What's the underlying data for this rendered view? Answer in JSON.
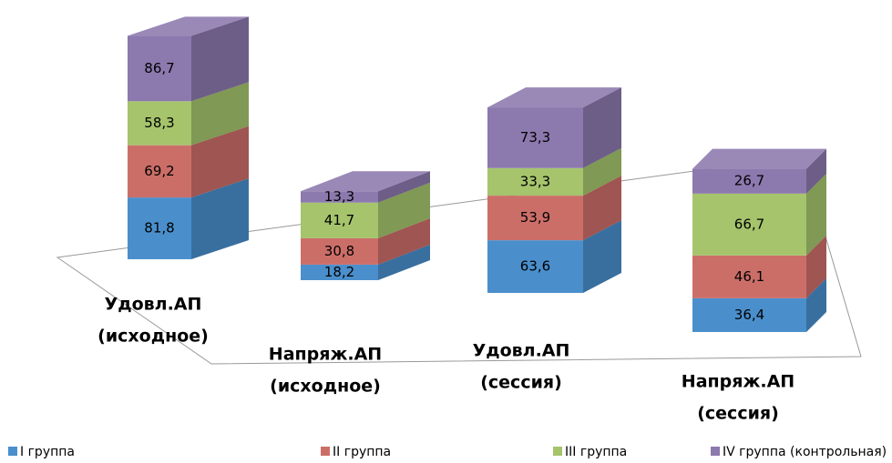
{
  "chart_data": {
    "type": "bar3d_stacked",
    "categories": [
      [
        "Удовл.АП",
        "(исходное)"
      ],
      [
        "Напряж.АП",
        "(исходное)"
      ],
      [
        "Удовл.АП",
        "(сессия)"
      ],
      [
        "Напряж.АП",
        "(сессия)"
      ]
    ],
    "series": [
      {
        "name": "I группа",
        "color": "#4a8fcc",
        "values": [
          81.8,
          18.2,
          63.6,
          36.4
        ],
        "value_labels": [
          "81,8",
          "18,2",
          "63,6",
          "36,4"
        ]
      },
      {
        "name": "II группа",
        "color": "#cc6e68",
        "values": [
          69.2,
          30.8,
          53.9,
          46.1
        ],
        "value_labels": [
          "69,2",
          "30,8",
          "53,9",
          "46,1"
        ]
      },
      {
        "name": "III группа",
        "color": "#a5c46c",
        "values": [
          58.3,
          41.7,
          33.3,
          66.7
        ],
        "value_labels": [
          "58,3",
          "41,7",
          "33,3",
          "66,7"
        ]
      },
      {
        "name": "IV группа (контрольная)",
        "color": "#8c79ae",
        "values": [
          86.7,
          13.3,
          73.3,
          26.7
        ],
        "value_labels": [
          "86,7",
          "13,3",
          "73,3",
          "26,7"
        ]
      }
    ],
    "legend": "bottom"
  }
}
